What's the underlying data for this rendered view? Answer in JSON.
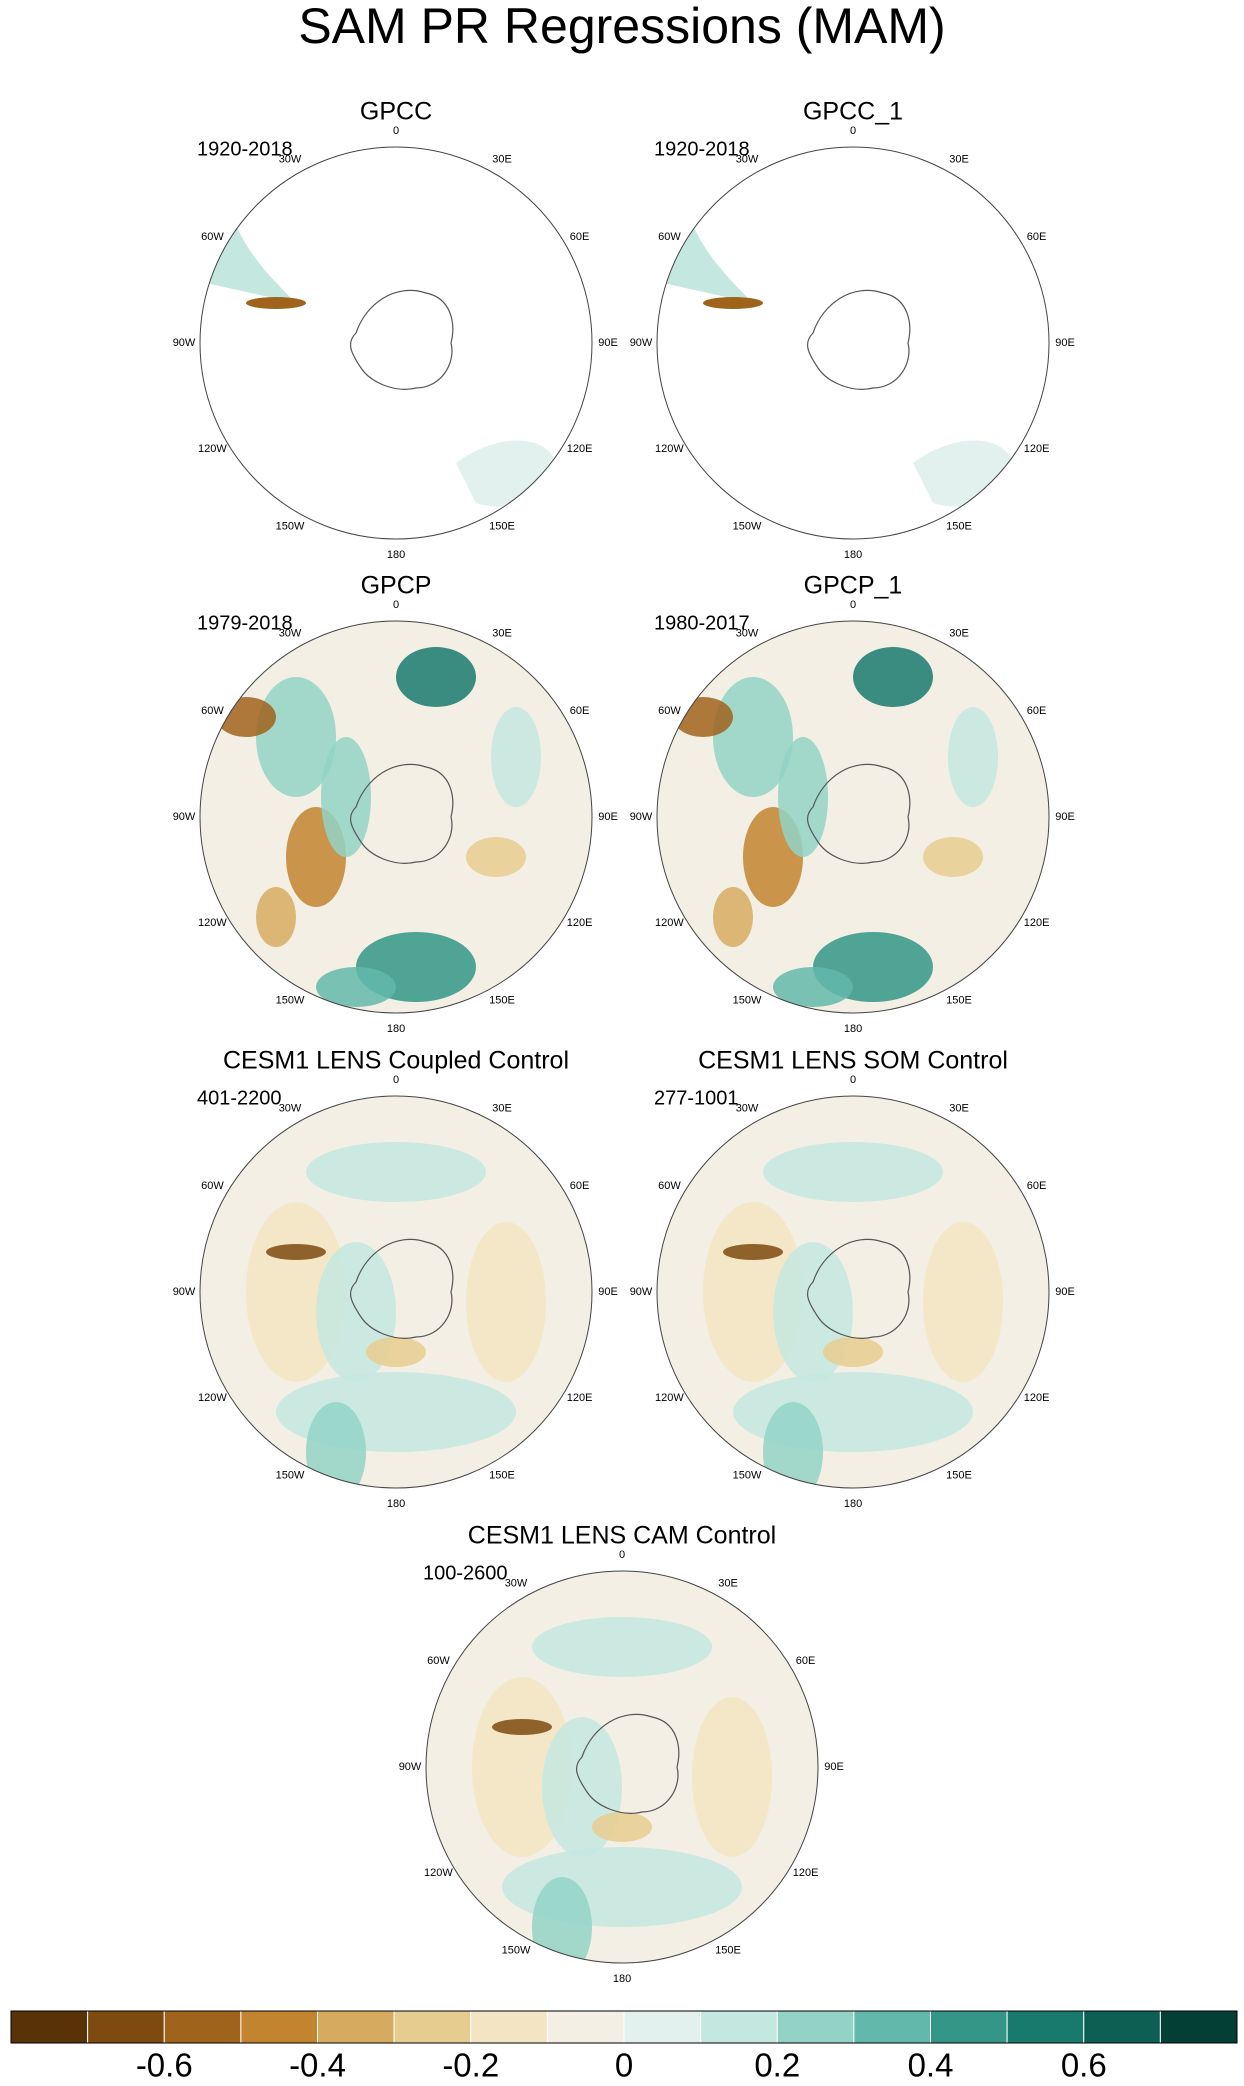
{
  "title": "SAM PR Regressions (MAM)",
  "lon_labels": [
    "0",
    "30E",
    "60E",
    "90E",
    "120E",
    "150E",
    "180",
    "150W",
    "120W",
    "90W",
    "60W",
    "30W"
  ],
  "panels": [
    {
      "title": "GPCC",
      "period": "1920-2018"
    },
    {
      "title": "GPCC_1",
      "period": "1920-2018"
    },
    {
      "title": "GPCP",
      "period": "1979-2018"
    },
    {
      "title": "GPCP_1",
      "period": "1980-2017"
    },
    {
      "title": "CESM1 LENS Coupled Control",
      "period": "401-2200"
    },
    {
      "title": "CESM1 LENS SOM Control",
      "period": "277-1001"
    },
    {
      "title": "CESM1 LENS CAM Control",
      "period": "100-2600"
    }
  ],
  "colorbar": {
    "lim": [
      -0.8,
      0.8
    ],
    "colors": [
      "#5a3208",
      "#7d4a10",
      "#a0631c",
      "#c2842f",
      "#d6ab60",
      "#e7cc8f",
      "#f3e5c3",
      "#f3efe5",
      "#e2f0ee",
      "#c4e8e0",
      "#92d3c6",
      "#62b8aa",
      "#339687",
      "#187a6d",
      "#0c5f52",
      "#033f35"
    ],
    "ticks": [
      -0.6,
      -0.4,
      -0.2,
      0,
      0.2,
      0.4,
      0.6
    ]
  }
}
